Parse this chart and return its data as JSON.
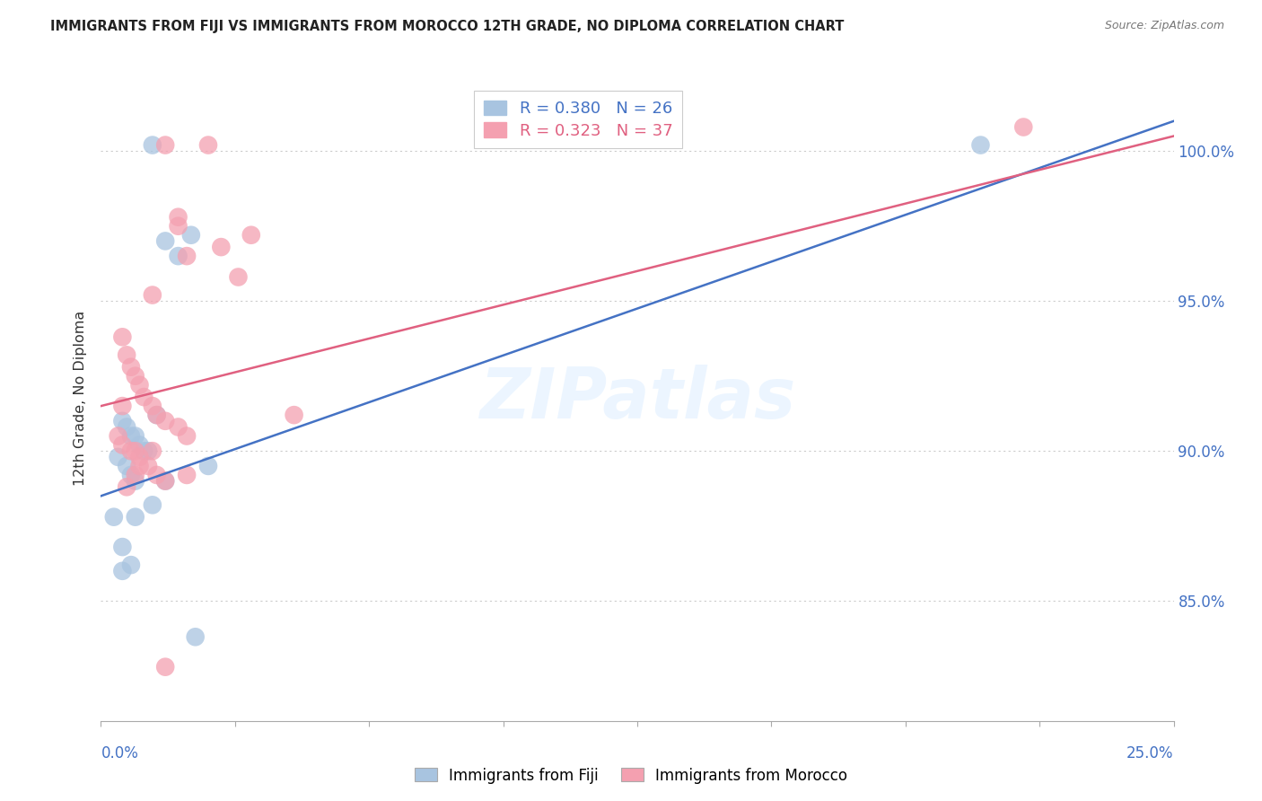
{
  "title": "IMMIGRANTS FROM FIJI VS IMMIGRANTS FROM MOROCCO 12TH GRADE, NO DIPLOMA CORRELATION CHART",
  "source": "Source: ZipAtlas.com",
  "ylabel": "12th Grade, No Diploma",
  "watermark": "ZIPatlas",
  "fiji_R": 0.38,
  "fiji_N": 26,
  "morocco_R": 0.323,
  "morocco_N": 37,
  "fiji_color": "#a8c4e0",
  "morocco_color": "#f4a0b0",
  "fiji_line_color": "#4472c4",
  "morocco_line_color": "#e06080",
  "xlim": [
    0.0,
    25.0
  ],
  "ylim": [
    81.0,
    102.5
  ],
  "ytick_vals": [
    85.0,
    90.0,
    95.0,
    100.0
  ],
  "fiji_line_x0": 0.0,
  "fiji_line_y0": 88.5,
  "fiji_line_x1": 25.0,
  "fiji_line_y1": 101.0,
  "morocco_line_x0": 0.0,
  "morocco_line_y0": 91.5,
  "morocco_line_x1": 25.0,
  "morocco_line_y1": 100.5,
  "fiji_x": [
    1.2,
    2.1,
    1.5,
    1.8,
    1.3,
    0.5,
    0.6,
    0.7,
    0.8,
    0.9,
    1.0,
    1.1,
    0.4,
    0.6,
    0.7,
    0.8,
    1.5,
    1.2,
    0.3,
    0.5,
    0.7,
    2.2,
    20.5,
    2.5,
    0.5,
    0.8
  ],
  "fiji_y": [
    100.2,
    97.2,
    97.0,
    96.5,
    91.2,
    91.0,
    90.8,
    90.5,
    90.5,
    90.2,
    90.0,
    90.0,
    89.8,
    89.5,
    89.2,
    89.0,
    89.0,
    88.2,
    87.8,
    86.8,
    86.2,
    83.8,
    100.2,
    89.5,
    86.0,
    87.8
  ],
  "morocco_x": [
    2.5,
    1.5,
    1.8,
    3.5,
    2.8,
    2.0,
    3.2,
    1.2,
    0.5,
    0.6,
    0.7,
    0.8,
    0.9,
    1.0,
    1.2,
    1.3,
    1.5,
    1.8,
    2.0,
    0.4,
    0.5,
    0.7,
    0.8,
    0.9,
    1.1,
    1.3,
    1.5,
    2.0,
    4.5,
    1.8,
    0.6,
    0.8,
    0.9,
    1.2,
    1.5,
    21.5,
    0.5
  ],
  "morocco_y": [
    100.2,
    100.2,
    97.8,
    97.2,
    96.8,
    96.5,
    95.8,
    95.2,
    93.8,
    93.2,
    92.8,
    92.5,
    92.2,
    91.8,
    91.5,
    91.2,
    91.0,
    90.8,
    90.5,
    90.5,
    90.2,
    90.0,
    90.0,
    89.8,
    89.5,
    89.2,
    89.0,
    89.2,
    91.2,
    97.5,
    88.8,
    89.2,
    89.5,
    90.0,
    82.8,
    100.8,
    91.5
  ]
}
